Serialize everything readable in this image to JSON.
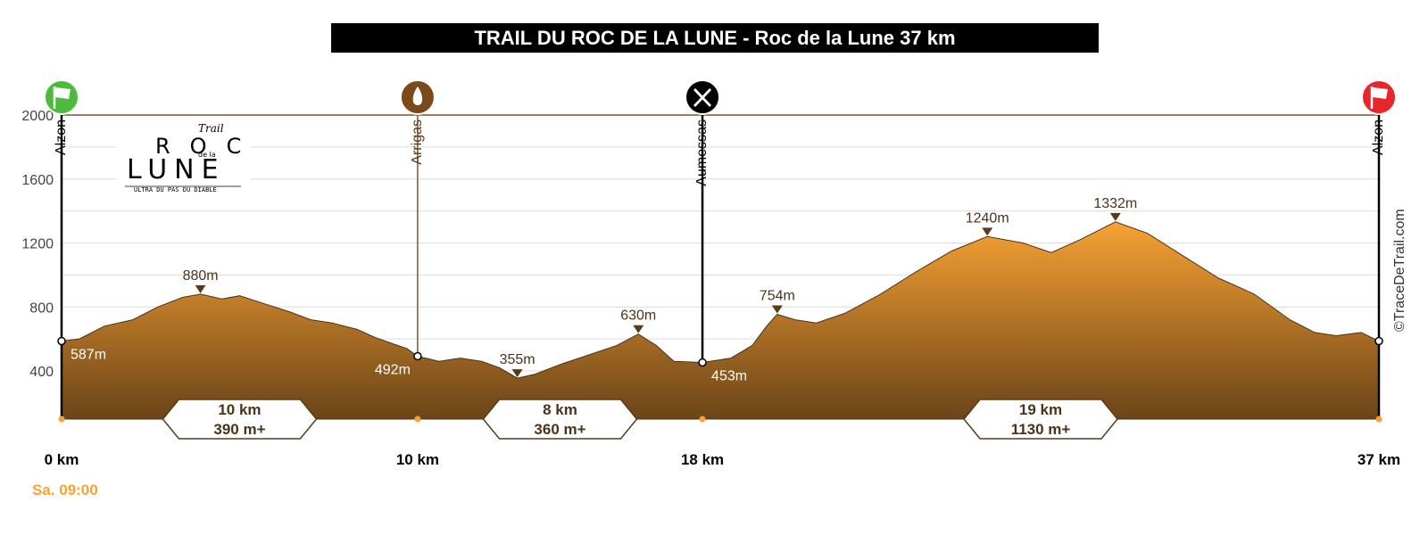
{
  "title": "TRAIL DU ROC DE LA LUNE - Roc de la Lune 37 km",
  "start_time": "Sa. 09:00",
  "credit": "©TraceDeTrail.com",
  "logo": {
    "top_text": "Trail",
    "line1": "ROC",
    "small": "de la",
    "line2": "LUNE",
    "tagline": "ULTRA DU PAS DU DIABLE"
  },
  "colors": {
    "profile_top": "#f7a234",
    "profile_bottom": "#6b4418",
    "frame": "#7a5530",
    "time": "#f7a234",
    "start_flag": "#4cbb3c",
    "finish_flag": "#e8252b",
    "water": "#7a4a1a"
  },
  "chart_data": {
    "type": "area",
    "title": "TRAIL DU ROC DE LA LUNE - Roc de la Lune 37 km",
    "xlabel": "",
    "ylabel": "",
    "x_unit": "km",
    "xlim": [
      0,
      37
    ],
    "ylim": [
      150,
      2000
    ],
    "y_ticks": [
      400,
      800,
      1200,
      1600,
      2000
    ],
    "grid": true,
    "profile": [
      {
        "x": 0,
        "y": 587
      },
      {
        "x": 0.5,
        "y": 600
      },
      {
        "x": 1.2,
        "y": 680
      },
      {
        "x": 2,
        "y": 720
      },
      {
        "x": 2.7,
        "y": 800
      },
      {
        "x": 3.4,
        "y": 860
      },
      {
        "x": 3.9,
        "y": 880
      },
      {
        "x": 4.5,
        "y": 850
      },
      {
        "x": 5,
        "y": 870
      },
      {
        "x": 5.7,
        "y": 820
      },
      {
        "x": 6.4,
        "y": 770
      },
      {
        "x": 7,
        "y": 720
      },
      {
        "x": 7.6,
        "y": 700
      },
      {
        "x": 8.3,
        "y": 660
      },
      {
        "x": 8.8,
        "y": 610
      },
      {
        "x": 9.3,
        "y": 570
      },
      {
        "x": 9.7,
        "y": 540
      },
      {
        "x": 10,
        "y": 492
      },
      {
        "x": 10.6,
        "y": 460
      },
      {
        "x": 11.2,
        "y": 480
      },
      {
        "x": 11.8,
        "y": 460
      },
      {
        "x": 12.3,
        "y": 420
      },
      {
        "x": 12.8,
        "y": 355
      },
      {
        "x": 13.3,
        "y": 380
      },
      {
        "x": 14,
        "y": 440
      },
      {
        "x": 14.8,
        "y": 500
      },
      {
        "x": 15.6,
        "y": 560
      },
      {
        "x": 16.2,
        "y": 630
      },
      {
        "x": 16.7,
        "y": 560
      },
      {
        "x": 17.2,
        "y": 460
      },
      {
        "x": 18,
        "y": 453
      },
      {
        "x": 18.8,
        "y": 480
      },
      {
        "x": 19.4,
        "y": 560
      },
      {
        "x": 19.8,
        "y": 680
      },
      {
        "x": 20.1,
        "y": 754
      },
      {
        "x": 20.6,
        "y": 720
      },
      {
        "x": 21.2,
        "y": 700
      },
      {
        "x": 22,
        "y": 760
      },
      {
        "x": 23,
        "y": 880
      },
      {
        "x": 24,
        "y": 1020
      },
      {
        "x": 25,
        "y": 1150
      },
      {
        "x": 26,
        "y": 1240
      },
      {
        "x": 27,
        "y": 1200
      },
      {
        "x": 27.8,
        "y": 1140
      },
      {
        "x": 28.6,
        "y": 1220
      },
      {
        "x": 29.6,
        "y": 1332
      },
      {
        "x": 30.5,
        "y": 1260
      },
      {
        "x": 31.5,
        "y": 1120
      },
      {
        "x": 32.5,
        "y": 980
      },
      {
        "x": 33.5,
        "y": 880
      },
      {
        "x": 34.5,
        "y": 720
      },
      {
        "x": 35.2,
        "y": 640
      },
      {
        "x": 35.8,
        "y": 620
      },
      {
        "x": 36.5,
        "y": 640
      },
      {
        "x": 37,
        "y": 587
      }
    ],
    "stations": [
      {
        "name": "Alzon",
        "km": 0,
        "label": "0 km",
        "alt": 587,
        "alt_label": "587m",
        "icon": "start-flag-icon"
      },
      {
        "name": "Arrigas",
        "km": 10,
        "label": "10 km",
        "alt": 492,
        "alt_label": "492m",
        "icon": "water-drop-icon"
      },
      {
        "name": "Aumessas",
        "km": 18,
        "label": "18 km",
        "alt": 453,
        "alt_label": "453m",
        "icon": "food-icon"
      },
      {
        "name": "Alzon",
        "km": 37,
        "label": "37 km",
        "alt": 587,
        "alt_label": "587m",
        "icon": "finish-flag-icon"
      }
    ],
    "peaks": [
      {
        "km": 3.9,
        "alt": 880,
        "label": "880m"
      },
      {
        "km": 12.8,
        "alt": 355,
        "label": "355m"
      },
      {
        "km": 16.2,
        "alt": 630,
        "label": "630m"
      },
      {
        "km": 20.1,
        "alt": 754,
        "label": "754m"
      },
      {
        "km": 26,
        "alt": 1240,
        "label": "1240m"
      },
      {
        "km": 29.6,
        "alt": 1332,
        "label": "1332m"
      }
    ],
    "segments": [
      {
        "km_mid": 5,
        "dist": "10 km",
        "gain": "390 m+"
      },
      {
        "km_mid": 14,
        "dist": "8 km",
        "gain": "360 m+"
      },
      {
        "km_mid": 27.5,
        "dist": "19 km",
        "gain": "1130 m+"
      }
    ]
  }
}
